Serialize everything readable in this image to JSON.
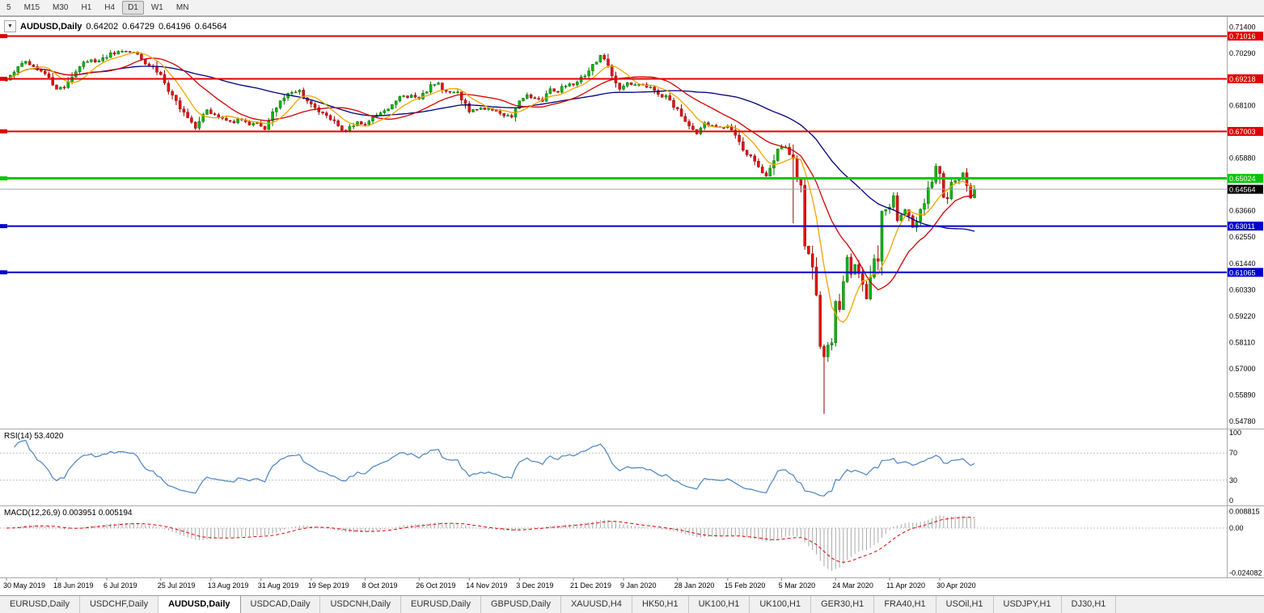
{
  "toolbar": {
    "timeframes": [
      "5",
      "M15",
      "M30",
      "H1",
      "H4",
      "D1",
      "W1",
      "MN"
    ],
    "active": "D1"
  },
  "icons": {
    "dropdown": "▼"
  },
  "chart": {
    "title": {
      "symbol": "AUDUSD,Daily",
      "open": "0.64202",
      "high": "0.64729",
      "low": "0.64196",
      "close": "0.64564"
    },
    "price_axis_ticks": [
      "0.71400",
      "0.70290",
      "0.69180",
      "0.68100",
      "0.66990",
      "0.65880",
      "0.64770",
      "0.63660",
      "0.62550",
      "0.61440",
      "0.60330",
      "0.59220",
      "0.58110",
      "0.57000",
      "0.55890",
      "0.54780"
    ],
    "current_price": {
      "label": "0.64564",
      "value": 0.64564,
      "line_color": "#a0a0a0",
      "badge_color": "#000000"
    },
    "time_axis_ticks": [
      {
        "label": "30 May 2019",
        "index": 0
      },
      {
        "label": "18 Jun 2019",
        "index": 13
      },
      {
        "label": "6 Jul 2019",
        "index": 26
      },
      {
        "label": "25 Jul 2019",
        "index": 40
      },
      {
        "label": "13 Aug 2019",
        "index": 53
      },
      {
        "label": "31 Aug 2019",
        "index": 66
      },
      {
        "label": "19 Sep 2019",
        "index": 79
      },
      {
        "label": "8 Oct 2019",
        "index": 93
      },
      {
        "label": "26 Oct 2019",
        "index": 107
      },
      {
        "label": "14 Nov 2019",
        "index": 120
      },
      {
        "label": "3 Dec 2019",
        "index": 133
      },
      {
        "label": "21 Dec 2019",
        "index": 147
      },
      {
        "label": "9 Jan 2020",
        "index": 160
      },
      {
        "label": "28 Jan 2020",
        "index": 174
      },
      {
        "label": "15 Feb 2020",
        "index": 187
      },
      {
        "label": "5 Mar 2020",
        "index": 201
      },
      {
        "label": "24 Mar 2020",
        "index": 215
      },
      {
        "label": "11 Apr 2020",
        "index": 229
      },
      {
        "label": "30 Apr 2020",
        "index": 242
      }
    ]
  },
  "rsi": {
    "label": "RSI(14) 53.4020",
    "last_value": 53.402,
    "line_color": "#4a83c2",
    "levels": [
      70,
      30
    ],
    "axis_ticks": [
      {
        "label": "100",
        "value": 100
      },
      {
        "label": "70",
        "value": 70
      },
      {
        "label": "30",
        "value": 30
      },
      {
        "label": "0",
        "value": 0
      }
    ]
  },
  "macd": {
    "label": "MACD(12,26,9) 0.003951 0.005194",
    "last_macd": 0.003951,
    "last_signal": 0.005194,
    "histogram_color": "#a8a8a8",
    "signal_color": "#e00000",
    "axis_ticks": [
      {
        "label": "0.008815",
        "value": 0.008815
      },
      {
        "label": "0.00",
        "value": 0
      },
      {
        "label": "-0.024082",
        "value": -0.024082
      }
    ]
  },
  "tabs": {
    "active_index": 2,
    "items": [
      "EURUSD,Daily",
      "USDCHF,Daily",
      "AUDUSD,Daily",
      "USDCAD,Daily",
      "USDCNH,Daily",
      "EURUSD,Daily",
      "GBPUSD,Daily",
      "XAUUSD,H4",
      "HK50,H1",
      "UK100,H1",
      "UK100,H1",
      "GER30,H1",
      "FRA40,H1",
      "USOil,H1",
      "USDJPY,H1",
      "DJ30,H1"
    ]
  },
  "chart_data": {
    "type": "candlestick",
    "symbol": "AUDUSD",
    "timeframe": "Daily",
    "ohlc_last": {
      "open": 0.64202,
      "high": 0.64729,
      "low": 0.64196,
      "close": 0.64564
    },
    "ylim": [
      0.5455,
      0.7172
    ],
    "n_candles": 252,
    "x_range_dates": [
      "30 May 2019",
      "13 May 2020"
    ],
    "close_path_anchors": [
      [
        0,
        0.6915
      ],
      [
        2,
        0.6958
      ],
      [
        5,
        0.7
      ],
      [
        8,
        0.6962
      ],
      [
        11,
        0.693
      ],
      [
        13,
        0.6876
      ],
      [
        15,
        0.6892
      ],
      [
        18,
        0.6958
      ],
      [
        21,
        0.7
      ],
      [
        24,
        0.6992
      ],
      [
        27,
        0.7028
      ],
      [
        31,
        0.704
      ],
      [
        34,
        0.7026
      ],
      [
        36,
        0.6985
      ],
      [
        38,
        0.6978
      ],
      [
        40,
        0.693
      ],
      [
        43,
        0.6852
      ],
      [
        45,
        0.68
      ],
      [
        47,
        0.6756
      ],
      [
        49,
        0.672
      ],
      [
        52,
        0.6786
      ],
      [
        55,
        0.6764
      ],
      [
        58,
        0.6738
      ],
      [
        61,
        0.6752
      ],
      [
        63,
        0.673
      ],
      [
        65,
        0.6736
      ],
      [
        67,
        0.6712
      ],
      [
        70,
        0.6808
      ],
      [
        73,
        0.686
      ],
      [
        76,
        0.6868
      ],
      [
        78,
        0.683
      ],
      [
        80,
        0.6792
      ],
      [
        83,
        0.676
      ],
      [
        85,
        0.6746
      ],
      [
        87,
        0.67
      ],
      [
        89,
        0.6716
      ],
      [
        91,
        0.6742
      ],
      [
        93,
        0.6728
      ],
      [
        96,
        0.6766
      ],
      [
        99,
        0.6788
      ],
      [
        102,
        0.684
      ],
      [
        105,
        0.6852
      ],
      [
        107,
        0.6836
      ],
      [
        110,
        0.689
      ],
      [
        112,
        0.6898
      ],
      [
        114,
        0.6862
      ],
      [
        117,
        0.6866
      ],
      [
        120,
        0.6788
      ],
      [
        123,
        0.68
      ],
      [
        126,
        0.6792
      ],
      [
        129,
        0.6772
      ],
      [
        131,
        0.6766
      ],
      [
        133,
        0.682
      ],
      [
        135,
        0.6852
      ],
      [
        137,
        0.6842
      ],
      [
        139,
        0.6832
      ],
      [
        141,
        0.6878
      ],
      [
        143,
        0.687
      ],
      [
        145,
        0.6898
      ],
      [
        147,
        0.6902
      ],
      [
        149,
        0.6928
      ],
      [
        151,
        0.695
      ],
      [
        153,
        0.7
      ],
      [
        154,
        0.7018
      ],
      [
        155,
        0.7008
      ],
      [
        157,
        0.6942
      ],
      [
        159,
        0.6876
      ],
      [
        161,
        0.6904
      ],
      [
        163,
        0.6898
      ],
      [
        165,
        0.6894
      ],
      [
        167,
        0.688
      ],
      [
        169,
        0.6852
      ],
      [
        171,
        0.6846
      ],
      [
        173,
        0.681
      ],
      [
        175,
        0.6762
      ],
      [
        177,
        0.672
      ],
      [
        179,
        0.6692
      ],
      [
        181,
        0.6744
      ],
      [
        183,
        0.6722
      ],
      [
        185,
        0.6716
      ],
      [
        187,
        0.6716
      ],
      [
        189,
        0.6686
      ],
      [
        191,
        0.6616
      ],
      [
        193,
        0.66
      ],
      [
        195,
        0.6552
      ],
      [
        197,
        0.6516
      ],
      [
        198,
        0.654
      ],
      [
        200,
        0.662
      ],
      [
        202,
        0.6636
      ],
      [
        204,
        0.6582
      ],
      [
        205,
        0.65
      ],
      [
        206,
        0.649
      ],
      [
        207,
        0.6236
      ],
      [
        208,
        0.619
      ],
      [
        209,
        0.612
      ],
      [
        210,
        0.599
      ],
      [
        211,
        0.578
      ],
      [
        212,
        0.5745
      ],
      [
        213,
        0.58
      ],
      [
        214,
        0.5822
      ],
      [
        215,
        0.597
      ],
      [
        216,
        0.5962
      ],
      [
        217,
        0.6066
      ],
      [
        218,
        0.617
      ],
      [
        219,
        0.6096
      ],
      [
        220,
        0.6136
      ],
      [
        221,
        0.6096
      ],
      [
        222,
        0.606
      ],
      [
        223,
        0.6002
      ],
      [
        224,
        0.6086
      ],
      [
        225,
        0.616
      ],
      [
        226,
        0.6136
      ],
      [
        227,
        0.6346
      ],
      [
        229,
        0.6392
      ],
      [
        230,
        0.644
      ],
      [
        231,
        0.6326
      ],
      [
        232,
        0.6356
      ],
      [
        233,
        0.6366
      ],
      [
        234,
        0.634
      ],
      [
        235,
        0.6292
      ],
      [
        236,
        0.632
      ],
      [
        237,
        0.6366
      ],
      [
        238,
        0.6396
      ],
      [
        239,
        0.6466
      ],
      [
        240,
        0.649
      ],
      [
        241,
        0.6552
      ],
      [
        242,
        0.651
      ],
      [
        243,
        0.6426
      ],
      [
        244,
        0.6426
      ],
      [
        245,
        0.6496
      ],
      [
        246,
        0.649
      ],
      [
        247,
        0.65
      ],
      [
        248,
        0.653
      ],
      [
        249,
        0.6486
      ],
      [
        250,
        0.642
      ],
      [
        251,
        0.6456
      ]
    ],
    "candle_overrides": [
      {
        "index": 204,
        "high": 0.6645,
        "low": 0.6313
      },
      {
        "index": 212,
        "low": 0.551
      },
      {
        "index": 251,
        "open": 0.64202,
        "high": 0.64729,
        "low": 0.64196,
        "close": 0.64564
      }
    ],
    "horizontal_levels": [
      {
        "price": 0.71016,
        "label": "0.71016",
        "color": "#e00000",
        "width": 2
      },
      {
        "price": 0.69218,
        "label": "0.69218",
        "color": "#e00000",
        "width": 2
      },
      {
        "price": 0.67003,
        "label": "0.67003",
        "color": "#e00000",
        "width": 2
      },
      {
        "price": 0.65024,
        "label": "0.65024",
        "color": "#00c800",
        "width": 3
      },
      {
        "price": 0.63011,
        "label": "0.63011",
        "color": "#0000d0",
        "width": 2
      },
      {
        "price": 0.61065,
        "label": "0.61065",
        "color": "#0000d0",
        "width": 2
      }
    ],
    "moving_averages": [
      {
        "period": 8,
        "color": "#f0a500"
      },
      {
        "period": 20,
        "color": "#d40000"
      },
      {
        "period": 50,
        "color": "#000080"
      }
    ],
    "indicators": [
      {
        "name": "RSI",
        "period": 14,
        "last": 53.402
      },
      {
        "name": "MACD",
        "fast": 12,
        "slow": 26,
        "signal": 9,
        "last_macd": 0.003951,
        "last_signal": 0.005194
      }
    ],
    "candle_colors": {
      "up_fill": "#0fb40f",
      "up_stroke": "#076e07",
      "down_fill": "#e31212",
      "down_stroke": "#8f0606"
    }
  }
}
